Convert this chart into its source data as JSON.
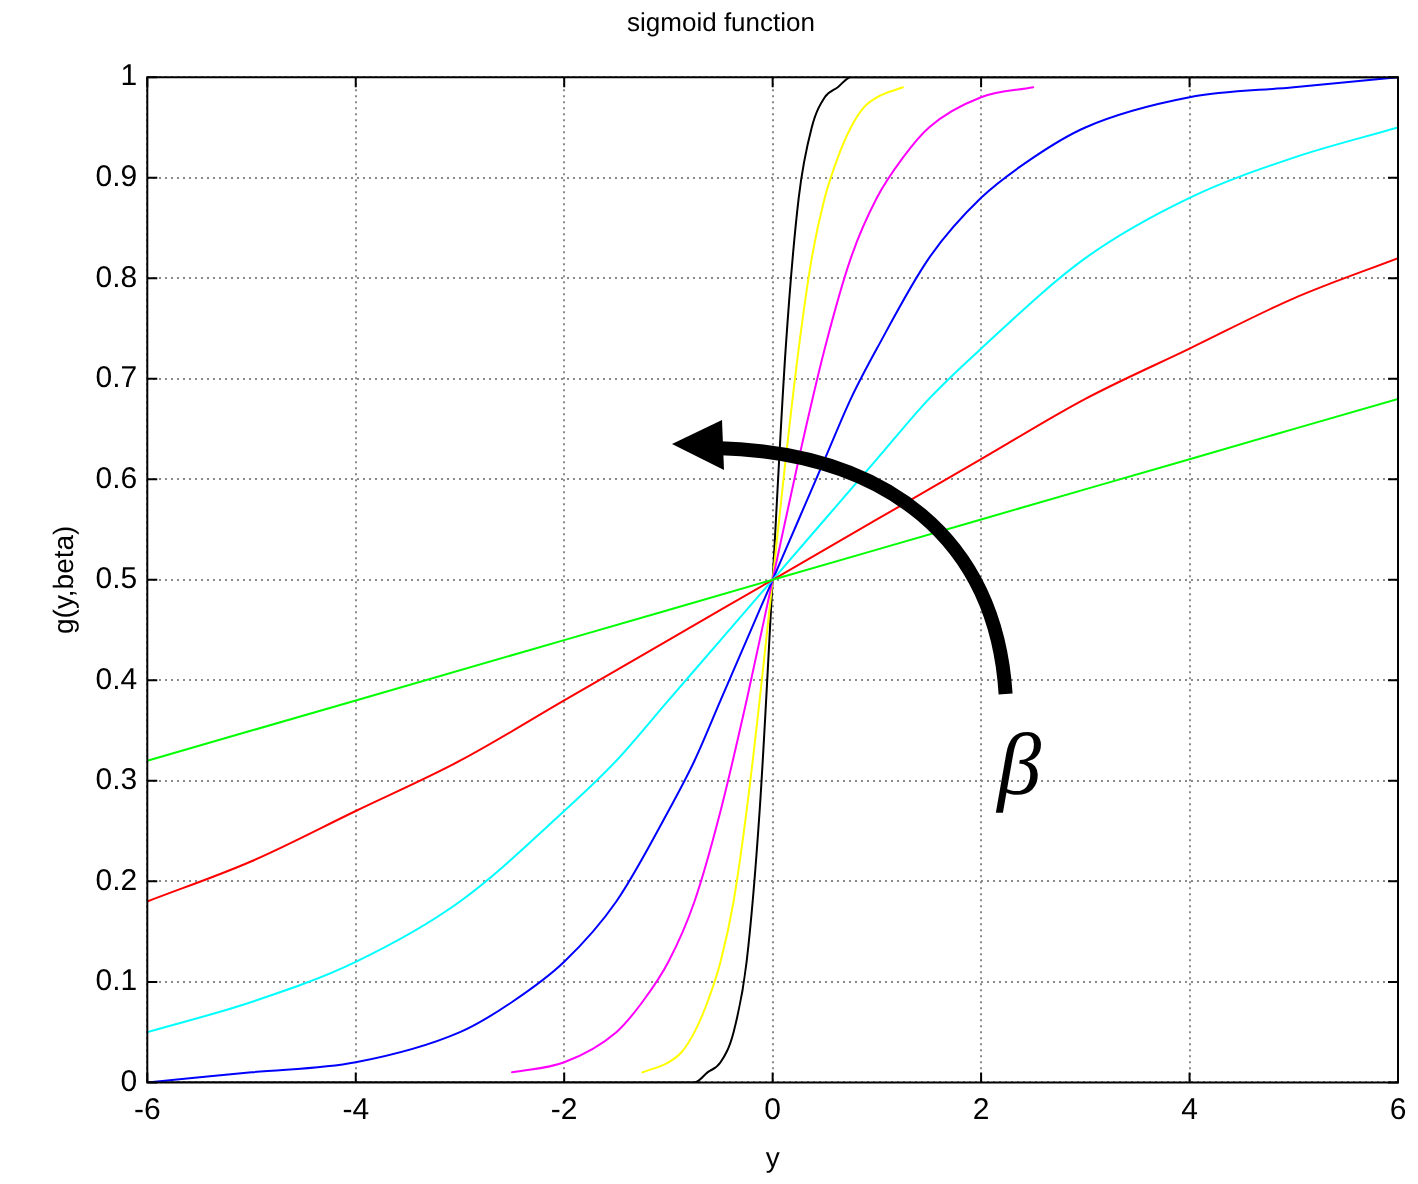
{
  "chart_data": {
    "type": "line",
    "title": "sigmoid function",
    "xlabel": "y",
    "ylabel": "g(y,beta)",
    "series": [
      {
        "color": "#00ff00",
        "x": [
          -6,
          -4,
          -2,
          0,
          2,
          4,
          6
        ],
        "values": [
          0.32,
          0.38,
          0.44,
          0.5,
          0.56,
          0.62,
          0.68
        ]
      },
      {
        "color": "#ff0000",
        "x": [
          -6,
          -5,
          -4,
          -3,
          -2,
          -1,
          0,
          1,
          2,
          3,
          4,
          5,
          6
        ],
        "values": [
          0.18,
          0.22,
          0.27,
          0.32,
          0.38,
          0.44,
          0.5,
          0.56,
          0.62,
          0.68,
          0.73,
          0.78,
          0.82
        ]
      },
      {
        "color": "#00ffff",
        "x": [
          -6,
          -5,
          -4,
          -3,
          -2,
          -1.5,
          -1,
          -0.5,
          0,
          0.5,
          1,
          1.5,
          2,
          3,
          4,
          5,
          6
        ],
        "values": [
          0.05,
          0.08,
          0.12,
          0.18,
          0.27,
          0.32,
          0.38,
          0.44,
          0.5,
          0.56,
          0.62,
          0.68,
          0.73,
          0.82,
          0.88,
          0.92,
          0.95
        ]
      },
      {
        "color": "#0000ff",
        "x": [
          -6,
          -5,
          -4,
          -3,
          -2.5,
          -2,
          -1.5,
          -1,
          -0.75,
          -0.5,
          -0.25,
          0,
          0.25,
          0.5,
          0.75,
          1,
          1.5,
          2,
          2.5,
          3,
          4,
          5,
          6
        ],
        "values": [
          0,
          0.01,
          0.02,
          0.05,
          0.08,
          0.12,
          0.18,
          0.27,
          0.32,
          0.38,
          0.44,
          0.5,
          0.56,
          0.62,
          0.68,
          0.73,
          0.82,
          0.88,
          0.92,
          0.95,
          0.98,
          0.99,
          1
        ]
      },
      {
        "color": "#ff00ff",
        "x": [
          -2.5,
          -2,
          -1.5,
          -1.25,
          -1,
          -0.75,
          -0.5,
          -0.25,
          0,
          0.25,
          0.5,
          0.75,
          1,
          1.25,
          1.5,
          2,
          2.5
        ],
        "values": [
          0.01,
          0.02,
          0.05,
          0.08,
          0.12,
          0.18,
          0.27,
          0.38,
          0.5,
          0.62,
          0.73,
          0.82,
          0.88,
          0.92,
          0.95,
          0.98,
          0.99
        ]
      },
      {
        "color": "#ffff00",
        "x": [
          -1.25,
          -1,
          -0.875,
          -0.75,
          -0.625,
          -0.5,
          -0.375,
          -0.25,
          -0.125,
          0,
          0.125,
          0.25,
          0.375,
          0.5,
          0.625,
          0.75,
          0.875,
          1,
          1.25
        ],
        "values": [
          0.01,
          0.02,
          0.03,
          0.05,
          0.08,
          0.12,
          0.18,
          0.27,
          0.38,
          0.5,
          0.62,
          0.73,
          0.82,
          0.88,
          0.92,
          0.95,
          0.97,
          0.98,
          0.99
        ]
      },
      {
        "color": "#000000",
        "x": [
          -6,
          -1,
          -0.75,
          -0.625,
          -0.5,
          -0.375,
          -0.25,
          -0.125,
          0,
          0.125,
          0.25,
          0.375,
          0.5,
          0.625,
          0.75,
          1,
          6
        ],
        "values": [
          0,
          0,
          0,
          0.01,
          0.02,
          0.05,
          0.12,
          0.27,
          0.5,
          0.73,
          0.88,
          0.95,
          0.98,
          0.99,
          1,
          1,
          1
        ]
      }
    ],
    "xlim": [
      -6,
      6
    ],
    "xticks": [
      -6,
      -4,
      -2,
      0,
      2,
      4,
      6
    ],
    "ylim": [
      0,
      1
    ],
    "yticks": [
      0,
      0.1,
      0.2,
      0.3,
      0.4,
      0.5,
      0.6,
      0.7,
      0.8,
      0.9,
      1
    ],
    "grid": true,
    "annotations": [
      "β"
    ]
  }
}
